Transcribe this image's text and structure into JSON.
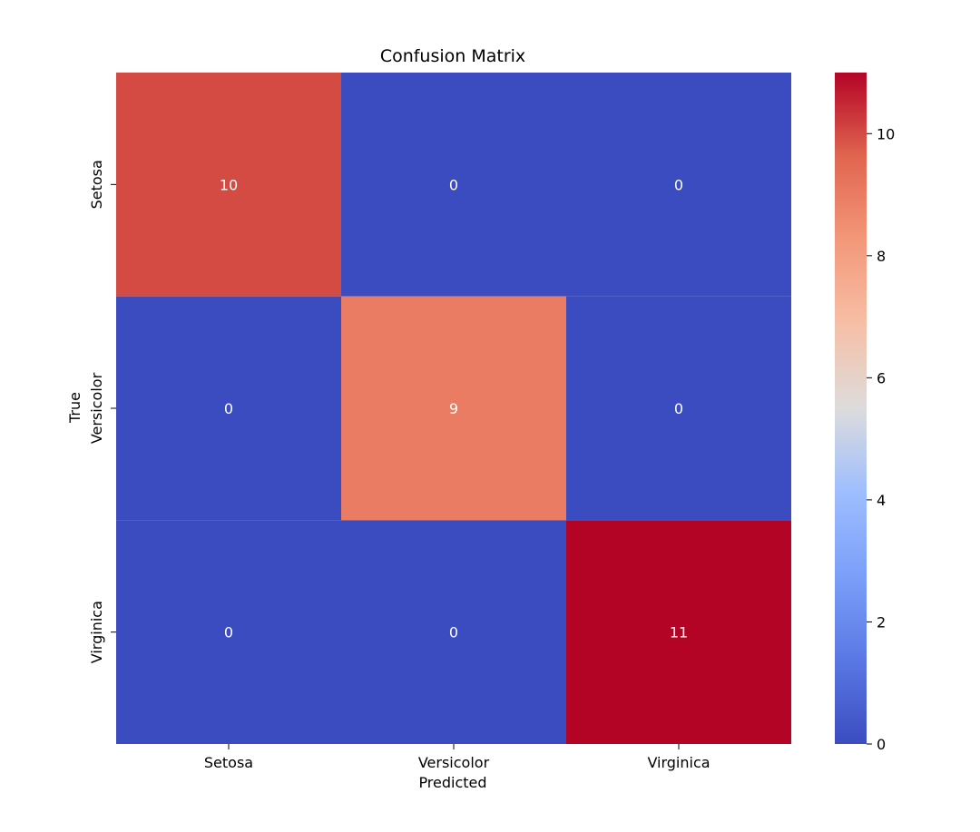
{
  "chart_data": {
    "type": "heatmap",
    "title": "Confusion Matrix",
    "xlabel": "Predicted",
    "ylabel": "True",
    "x_categories": [
      "Setosa",
      "Versicolor",
      "Virginica"
    ],
    "y_categories": [
      "Setosa",
      "Versicolor",
      "Virginica"
    ],
    "values": [
      [
        10,
        0,
        0
      ],
      [
        0,
        9,
        0
      ],
      [
        0,
        0,
        11
      ]
    ],
    "value_range": [
      0,
      11
    ],
    "colormap": "coolwarm",
    "colorbar": {
      "ticks": [
        0,
        2,
        4,
        6,
        8,
        10
      ],
      "tick_labels": [
        "0",
        "2",
        "4",
        "6",
        "8",
        "10"
      ]
    },
    "annotation_color": "#ffffff"
  }
}
